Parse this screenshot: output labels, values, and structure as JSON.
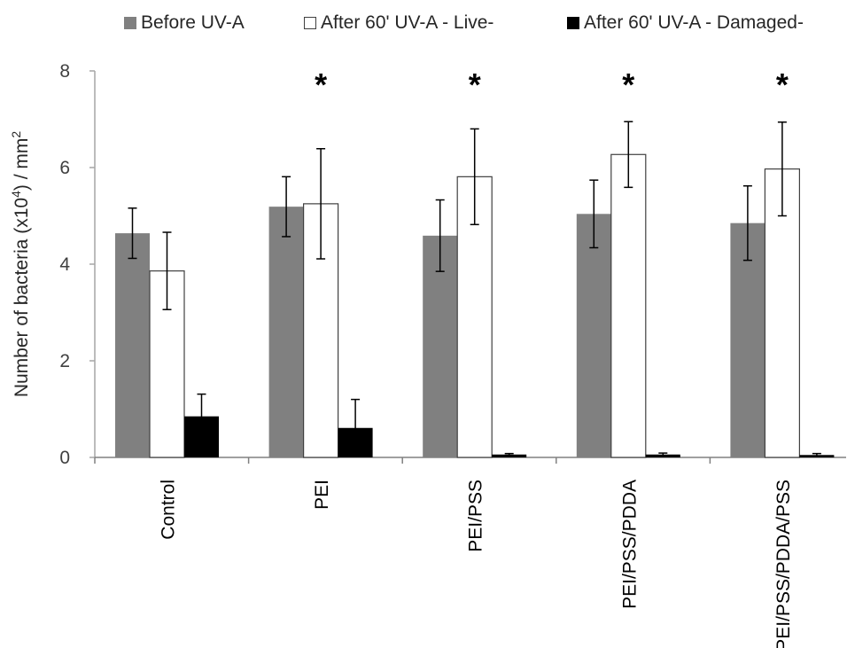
{
  "chart_data": {
    "type": "bar",
    "categories": [
      "Control",
      "PEI",
      "PEI/PSS",
      "PEI/PSS/PDDA",
      "PEI/PSS/PDDA/PSS"
    ],
    "series": [
      {
        "name": "Before UV-A",
        "color": "#808080",
        "values": [
          4.64,
          5.19,
          4.59,
          5.04,
          4.85
        ],
        "errors": [
          0.52,
          0.62,
          0.74,
          0.7,
          0.77
        ]
      },
      {
        "name": "After 60' UV-A - Live-",
        "color": "#ffffff",
        "values": [
          3.86,
          5.25,
          5.81,
          6.27,
          5.97
        ],
        "errors": [
          0.8,
          1.14,
          0.99,
          0.68,
          0.97
        ]
      },
      {
        "name": "After 60' UV-A - Damaged-",
        "color": "#000000",
        "values": [
          0.85,
          0.61,
          0.06,
          0.06,
          0.05
        ],
        "errors": [
          0.46,
          0.59,
          0.02,
          0.03,
          0.03
        ]
      }
    ],
    "significance_markers": [
      "",
      "*",
      "*",
      "*",
      "*"
    ],
    "ylabel_parts": {
      "a": "Number of bacteria (x10",
      "sup1": "4",
      "b": ") / mm",
      "sup2": "2"
    },
    "yticks": [
      "0",
      "2",
      "4",
      "6",
      "8"
    ],
    "ylim": [
      0,
      8
    ],
    "grid": false,
    "legend_position": "top"
  }
}
